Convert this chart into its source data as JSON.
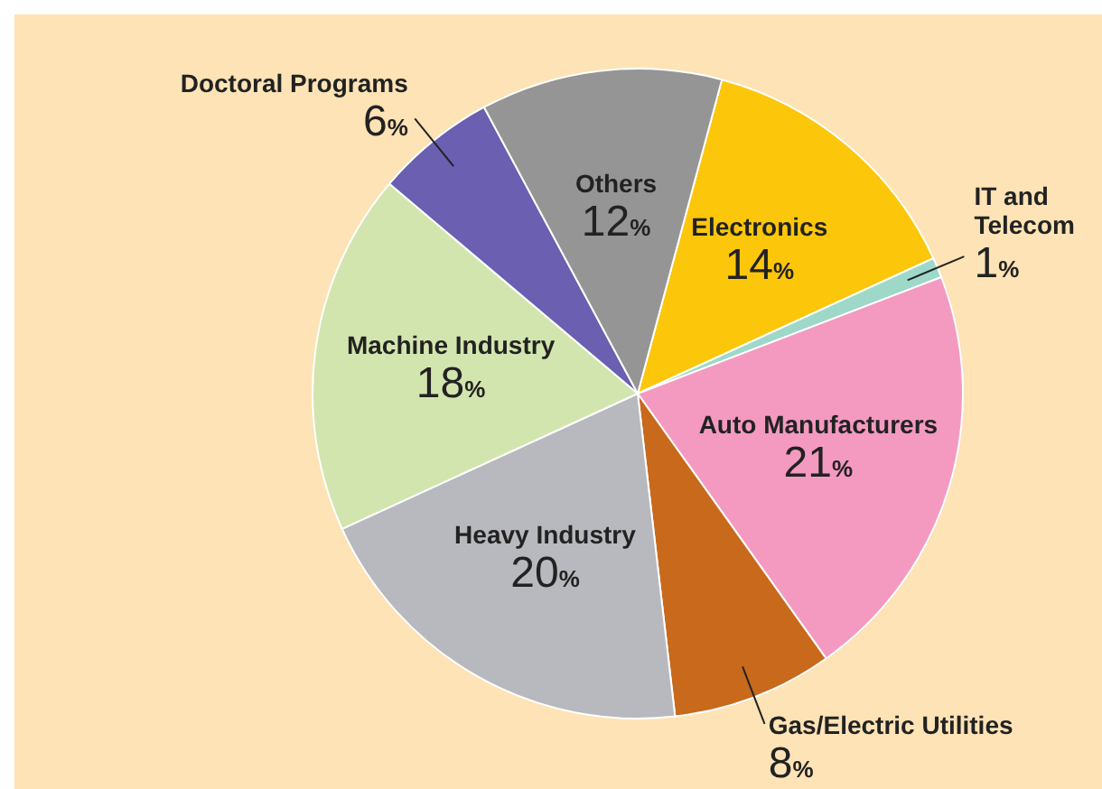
{
  "chart_data": {
    "type": "pie",
    "categories": [
      "Electronics",
      "IT and\nTelecom",
      "Auto Manufacturers",
      "Gas/Electric Utilities",
      "Heavy Industry",
      "Machine Industry",
      "Doctoral Programs",
      "Others"
    ],
    "values": [
      14,
      1,
      21,
      8,
      20,
      18,
      6,
      12
    ],
    "value_labels": [
      "14%",
      "1%",
      "21%",
      "8%",
      "20%",
      "18%",
      "6%",
      "12%"
    ],
    "colors": [
      "#fcc60a",
      "#9ed8c8",
      "#f49ac1",
      "#c8691b",
      "#b8b9be",
      "#d3e5ae",
      "#6a5fb0",
      "#959595"
    ],
    "legend": false
  }
}
